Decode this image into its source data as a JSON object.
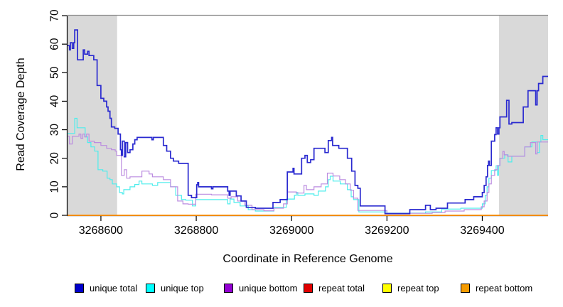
{
  "chart_data": {
    "type": "line",
    "title": "",
    "xlabel": "Coordinate in Reference Genome",
    "ylabel": "Read Coverage Depth",
    "x_range": [
      3268530,
      3269538
    ],
    "y_range": [
      0,
      70
    ],
    "x_ticks": [
      3268600,
      3268800,
      3269000,
      3269200,
      3269400
    ],
    "y_ticks": [
      0,
      10,
      20,
      30,
      40,
      50,
      60,
      70
    ],
    "grid": false,
    "legend_position": "bottom",
    "plot_border_top_color": "#8c8c8c",
    "axis_color": "#000000",
    "shaded_regions": [
      {
        "name": "left-gray-band",
        "x0": 3268530,
        "x1": 3268634,
        "color": "#d9d9d9"
      },
      {
        "name": "right-gray-band",
        "x0": 3269435,
        "x1": 3269538,
        "color": "#d9d9d9"
      }
    ],
    "legend_order": [
      "unique total",
      "unique top",
      "unique bottom",
      "repeat total",
      "repeat top",
      "repeat bottom"
    ],
    "legend_item_x": [
      105,
      205,
      315,
      427,
      538,
      648
    ],
    "series": [
      {
        "name": "repeat total",
        "legend_color": "#e00000",
        "line_color": "#e00000",
        "line_width": 1.4,
        "constant": 0
      },
      {
        "name": "repeat top",
        "legend_color": "#ffff00",
        "line_color": "#ffff00",
        "line_width": 1.4,
        "constant": 0
      },
      {
        "name": "repeat bottom",
        "legend_color": "#f59b00",
        "line_color": "#ff8c00",
        "line_width": 1.6,
        "constant": 0
      },
      {
        "name": "unique top",
        "legend_color": "#00ffff",
        "line_color": "#4dedec",
        "line_width": 1.2,
        "steps": [
          [
            3268530,
            28.7
          ],
          [
            3268545,
            34
          ],
          [
            3268550,
            30.7
          ],
          [
            3268567,
            27.5
          ],
          [
            3268572,
            25.5
          ],
          [
            3268579,
            24
          ],
          [
            3268587,
            22.5
          ],
          [
            3268594,
            16
          ],
          [
            3268604,
            15.5
          ],
          [
            3268613,
            13
          ],
          [
            3268619,
            12.5
          ],
          [
            3268624,
            11
          ],
          [
            3268633,
            10
          ],
          [
            3268639,
            8
          ],
          [
            3268645,
            7.5
          ],
          [
            3268648,
            9
          ],
          [
            3268661,
            10
          ],
          [
            3268671,
            10.8
          ],
          [
            3268680,
            12
          ],
          [
            3268686,
            11
          ],
          [
            3268708,
            10.5
          ],
          [
            3268719,
            11.5
          ],
          [
            3268746,
            10
          ],
          [
            3268757,
            7
          ],
          [
            3268769,
            5.5
          ],
          [
            3268778,
            5.3
          ],
          [
            3268792,
            3.3
          ],
          [
            3268799,
            5.5
          ],
          [
            3268866,
            4
          ],
          [
            3268871,
            5.7
          ],
          [
            3268879,
            4.5
          ],
          [
            3268892,
            3.3
          ],
          [
            3268909,
            2
          ],
          [
            3268924,
            1.5
          ],
          [
            3268963,
            2.8
          ],
          [
            3268989,
            5.7
          ],
          [
            3269006,
            7
          ],
          [
            3269010,
            8
          ],
          [
            3269013,
            7
          ],
          [
            3269028,
            7.5
          ],
          [
            3269047,
            7
          ],
          [
            3269056,
            8.5
          ],
          [
            3269071,
            10
          ],
          [
            3269077,
            12.5
          ],
          [
            3269081,
            13.7
          ],
          [
            3269087,
            12
          ],
          [
            3269102,
            11
          ],
          [
            3269117,
            9
          ],
          [
            3269125,
            6.5
          ],
          [
            3269130,
            5.5
          ],
          [
            3269141,
            1.2
          ],
          [
            3269200,
            0.8
          ],
          [
            3269281,
            1.2
          ],
          [
            3269315,
            2.2
          ],
          [
            3269355,
            2.5
          ],
          [
            3269400,
            4
          ],
          [
            3269406,
            7
          ],
          [
            3269410,
            10
          ],
          [
            3269414,
            13
          ],
          [
            3269419,
            15.7
          ],
          [
            3269429,
            17.4
          ],
          [
            3269432,
            14
          ],
          [
            3269434,
            17.4
          ],
          [
            3269437,
            20
          ],
          [
            3269447,
            21.2
          ],
          [
            3269454,
            18.7
          ],
          [
            3269462,
            20.7
          ],
          [
            3269489,
            24
          ],
          [
            3269504,
            25.7
          ],
          [
            3269515,
            22
          ],
          [
            3269520,
            25.7
          ],
          [
            3269523,
            28
          ],
          [
            3269527,
            26.5
          ]
        ]
      },
      {
        "name": "unique bottom",
        "legend_color": "#9400d3",
        "line_color": "#bb8ce0",
        "line_width": 1.2,
        "steps": [
          [
            3268530,
            27.7
          ],
          [
            3268534,
            25
          ],
          [
            3268540,
            27.7
          ],
          [
            3268554,
            28.5
          ],
          [
            3268558,
            27
          ],
          [
            3268562,
            28.5
          ],
          [
            3268566,
            27.5
          ],
          [
            3268570,
            28.5
          ],
          [
            3268575,
            26
          ],
          [
            3268586,
            25.5
          ],
          [
            3268600,
            24.5
          ],
          [
            3268612,
            23.5
          ],
          [
            3268622,
            23
          ],
          [
            3268630,
            22.5
          ],
          [
            3268633,
            21
          ],
          [
            3268643,
            14
          ],
          [
            3268649,
            16
          ],
          [
            3268654,
            13
          ],
          [
            3268661,
            13.5
          ],
          [
            3268686,
            15.5
          ],
          [
            3268701,
            14.5
          ],
          [
            3268708,
            13.5
          ],
          [
            3268731,
            12.5
          ],
          [
            3268746,
            10
          ],
          [
            3268761,
            5
          ],
          [
            3268772,
            4
          ],
          [
            3268783,
            3.9
          ],
          [
            3268799,
            7.4
          ],
          [
            3268832,
            7.2
          ],
          [
            3268866,
            6
          ],
          [
            3268873,
            6.5
          ],
          [
            3268887,
            5
          ],
          [
            3268902,
            3.5
          ],
          [
            3268917,
            2
          ],
          [
            3268942,
            1.6
          ],
          [
            3268963,
            2.5
          ],
          [
            3268983,
            4
          ],
          [
            3268991,
            8.2
          ],
          [
            3269010,
            7.8
          ],
          [
            3269026,
            10.5
          ],
          [
            3269031,
            9
          ],
          [
            3269047,
            10
          ],
          [
            3269062,
            11
          ],
          [
            3269075,
            14.8
          ],
          [
            3269087,
            13.8
          ],
          [
            3269101,
            12.5
          ],
          [
            3269113,
            11
          ],
          [
            3269123,
            8.8
          ],
          [
            3269130,
            6
          ],
          [
            3269139,
            1.7
          ],
          [
            3269200,
            0.7
          ],
          [
            3269295,
            1
          ],
          [
            3269322,
            1.5
          ],
          [
            3269362,
            2
          ],
          [
            3269398,
            3
          ],
          [
            3269404,
            5
          ],
          [
            3269410,
            8
          ],
          [
            3269414,
            11
          ],
          [
            3269419,
            14
          ],
          [
            3269426,
            16
          ],
          [
            3269432,
            17.5
          ],
          [
            3269437,
            20
          ],
          [
            3269443,
            22.4
          ],
          [
            3269446,
            21.2
          ],
          [
            3269453,
            20.7
          ],
          [
            3269489,
            24
          ],
          [
            3269501,
            25.5
          ],
          [
            3269512,
            21.5
          ],
          [
            3269515,
            25.7
          ]
        ]
      },
      {
        "name": "unique total",
        "legend_color": "#0000cc",
        "line_color": "#2a2ad0",
        "line_width": 1.7,
        "steps": [
          [
            3268530,
            59.5
          ],
          [
            3268534,
            58
          ],
          [
            3268536,
            60.5
          ],
          [
            3268540,
            58.5
          ],
          [
            3268543,
            60.5
          ],
          [
            3268545,
            65
          ],
          [
            3268551,
            54.5
          ],
          [
            3268563,
            58
          ],
          [
            3268566,
            56.5
          ],
          [
            3268572,
            57.5
          ],
          [
            3268575,
            56
          ],
          [
            3268585,
            54.5
          ],
          [
            3268592,
            45.5
          ],
          [
            3268600,
            41
          ],
          [
            3268606,
            40
          ],
          [
            3268612,
            38
          ],
          [
            3268615,
            36.5
          ],
          [
            3268619,
            34
          ],
          [
            3268622,
            31
          ],
          [
            3268629,
            30.5
          ],
          [
            3268636,
            28.5
          ],
          [
            3268641,
            23
          ],
          [
            3268643,
            21
          ],
          [
            3268645,
            26
          ],
          [
            3268649,
            20.5
          ],
          [
            3268652,
            25.5
          ],
          [
            3268656,
            22
          ],
          [
            3268661,
            23
          ],
          [
            3268667,
            25
          ],
          [
            3268671,
            26.5
          ],
          [
            3268676,
            27.3
          ],
          [
            3268707,
            26.5
          ],
          [
            3268710,
            27.3
          ],
          [
            3268731,
            24.5
          ],
          [
            3268738,
            22.5
          ],
          [
            3268746,
            20
          ],
          [
            3268752,
            19
          ],
          [
            3268763,
            18.2
          ],
          [
            3268783,
            7
          ],
          [
            3268790,
            6.2
          ],
          [
            3268801,
            10.7
          ],
          [
            3268803,
            11.5
          ],
          [
            3268805,
            10
          ],
          [
            3268832,
            9.3
          ],
          [
            3268835,
            10
          ],
          [
            3268866,
            8.5
          ],
          [
            3268869,
            7
          ],
          [
            3268871,
            8.5
          ],
          [
            3268884,
            6.8
          ],
          [
            3268894,
            5
          ],
          [
            3268905,
            2.8
          ],
          [
            3268924,
            2.5
          ],
          [
            3268961,
            4.5
          ],
          [
            3268976,
            5.5
          ],
          [
            3268991,
            15.2
          ],
          [
            3269003,
            16.5
          ],
          [
            3269005,
            14.5
          ],
          [
            3269021,
            20
          ],
          [
            3269028,
            21
          ],
          [
            3269033,
            18.5
          ],
          [
            3269040,
            19.5
          ],
          [
            3269047,
            23.5
          ],
          [
            3269070,
            22
          ],
          [
            3269077,
            26.2
          ],
          [
            3269084,
            27.3
          ],
          [
            3269086,
            24.5
          ],
          [
            3269099,
            23.5
          ],
          [
            3269117,
            20
          ],
          [
            3269126,
            15.5
          ],
          [
            3269133,
            10.5
          ],
          [
            3269139,
            9.5
          ],
          [
            3269144,
            3.3
          ],
          [
            3269196,
            0.6
          ],
          [
            3269248,
            2
          ],
          [
            3269281,
            3.5
          ],
          [
            3269291,
            2
          ],
          [
            3269303,
            2.5
          ],
          [
            3269327,
            4.3
          ],
          [
            3269364,
            5.5
          ],
          [
            3269382,
            6.5
          ],
          [
            3269400,
            8
          ],
          [
            3269404,
            10.5
          ],
          [
            3269408,
            13.5
          ],
          [
            3269411,
            17.5
          ],
          [
            3269413,
            19
          ],
          [
            3269415,
            17.5
          ],
          [
            3269419,
            26
          ],
          [
            3269426,
            28.3
          ],
          [
            3269429,
            30.7
          ],
          [
            3269432,
            28.5
          ],
          [
            3269435,
            30.7
          ],
          [
            3269437,
            34.5
          ],
          [
            3269451,
            40.3
          ],
          [
            3269456,
            32
          ],
          [
            3269462,
            32.5
          ],
          [
            3269486,
            38
          ],
          [
            3269496,
            43.7
          ],
          [
            3269512,
            38.7
          ],
          [
            3269515,
            43.7
          ],
          [
            3269518,
            46.2
          ],
          [
            3269527,
            48.7
          ]
        ]
      }
    ]
  }
}
